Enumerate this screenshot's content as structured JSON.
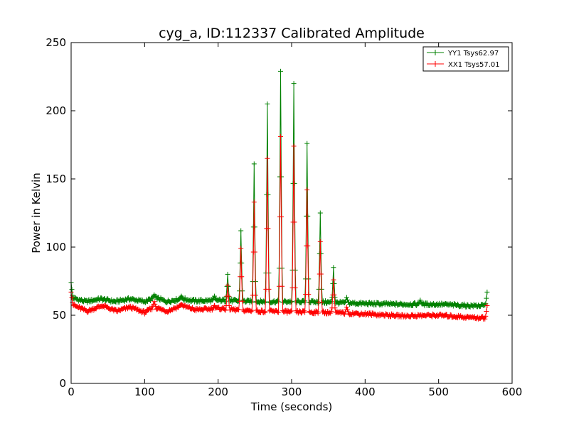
{
  "chart_data": {
    "type": "line",
    "title": "cyg_a, ID:112337 Calibrated Amplitude",
    "xlabel": "Time (seconds)",
    "ylabel": "Power in Kelvin",
    "xlim": [
      0,
      600
    ],
    "ylim": [
      0,
      250
    ],
    "x_ticks": [
      "0",
      "100",
      "200",
      "300",
      "400",
      "500",
      "600"
    ],
    "y_ticks": [
      "0",
      "50",
      "100",
      "150",
      "200",
      "250"
    ],
    "grid": false,
    "legend": "top-right",
    "markers": "plus",
    "series": [
      {
        "name": "YY1 Tsys62.97",
        "color": "#008000",
        "baseline": [
          [
            0,
            63
          ],
          [
            20,
            60
          ],
          [
            40,
            62
          ],
          [
            60,
            60
          ],
          [
            80,
            62
          ],
          [
            100,
            60
          ],
          [
            115,
            63
          ],
          [
            130,
            60
          ],
          [
            150,
            62
          ],
          [
            170,
            60.5
          ],
          [
            200,
            61
          ],
          [
            250,
            60
          ],
          [
            300,
            60
          ],
          [
            350,
            59.5
          ],
          [
            400,
            58.5
          ],
          [
            450,
            58
          ],
          [
            500,
            58
          ],
          [
            540,
            57
          ],
          [
            566,
            57
          ]
        ],
        "peaks": [
          [
            0,
            74
          ],
          [
            113,
            65
          ],
          [
            150,
            64
          ],
          [
            195,
            64
          ],
          [
            213,
            80
          ],
          [
            231,
            112
          ],
          [
            249,
            161
          ],
          [
            267,
            205
          ],
          [
            285,
            229
          ],
          [
            303,
            220
          ],
          [
            321,
            176
          ],
          [
            339,
            125
          ],
          [
            357,
            85
          ],
          [
            375,
            63
          ],
          [
            475,
            61
          ],
          [
            566,
            67
          ]
        ]
      },
      {
        "name": "XX1 Tsys57.01",
        "color": "#ff0000",
        "baseline": [
          [
            0,
            58
          ],
          [
            22,
            53
          ],
          [
            42,
            57
          ],
          [
            62,
            53
          ],
          [
            80,
            56
          ],
          [
            100,
            52
          ],
          [
            113,
            56
          ],
          [
            130,
            53
          ],
          [
            150,
            57
          ],
          [
            170,
            54
          ],
          [
            200,
            55
          ],
          [
            250,
            53
          ],
          [
            300,
            52.5
          ],
          [
            350,
            52
          ],
          [
            400,
            51
          ],
          [
            450,
            49.5
          ],
          [
            500,
            50
          ],
          [
            540,
            48.5
          ],
          [
            566,
            48
          ]
        ],
        "peaks": [
          [
            0,
            67
          ],
          [
            113,
            60
          ],
          [
            150,
            58
          ],
          [
            195,
            57
          ],
          [
            213,
            72
          ],
          [
            231,
            99
          ],
          [
            249,
            133
          ],
          [
            267,
            165
          ],
          [
            285,
            181
          ],
          [
            303,
            174
          ],
          [
            321,
            142
          ],
          [
            339,
            104
          ],
          [
            357,
            76
          ],
          [
            375,
            56
          ],
          [
            566,
            57
          ]
        ]
      }
    ]
  }
}
